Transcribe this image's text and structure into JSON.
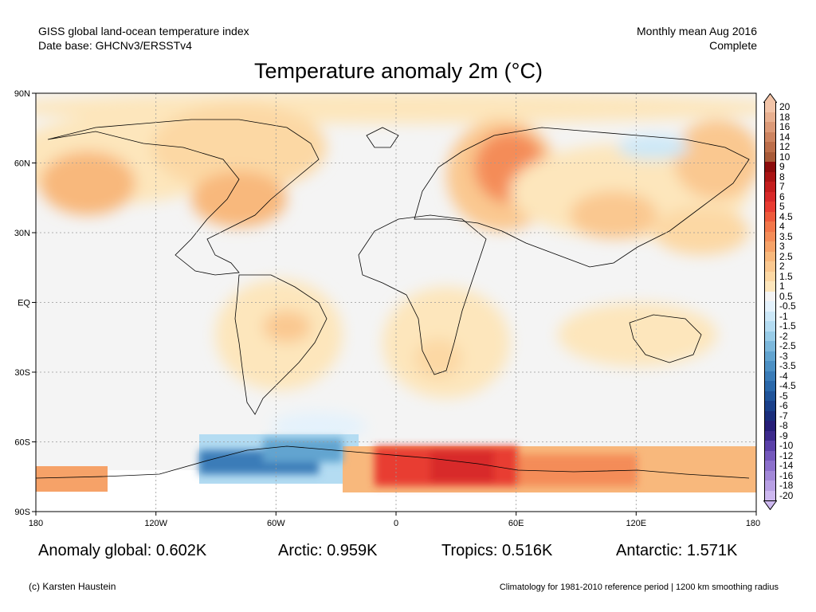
{
  "header": {
    "left_line1": "GISS global land-ocean temperature index",
    "left_line2": "Date base: GHCNv3/ERSSTv4",
    "right_line1": "Monthly mean Aug 2016",
    "right_line2": "Complete"
  },
  "title": "Temperature anomaly 2m (°C)",
  "axes": {
    "lat_labels": [
      "90N",
      "60N",
      "30N",
      "EQ",
      "30S",
      "60S",
      "90S"
    ],
    "lon_labels": [
      "180",
      "120W",
      "60W",
      "0",
      "60E",
      "120E",
      "180"
    ]
  },
  "stats": {
    "global": "Anomaly global: 0.602K",
    "arctic": "Arctic: 0.959K",
    "tropics": "Tropics: 0.516K",
    "antarctic": "Antarctic: 1.571K"
  },
  "footer": {
    "credit": "(c) Karsten Haustein",
    "note": "Climatology for 1981-2010 reference period | 1200 km smoothing radius"
  },
  "colorbar": {
    "top_arrow_color": "#f2c4a8",
    "bottom_arrow_color": "#cdb8f0",
    "levels": [
      {
        "label": "20",
        "color": "#f2c4a8"
      },
      {
        "label": "18",
        "color": "#e8b090"
      },
      {
        "label": "16",
        "color": "#dc9a78"
      },
      {
        "label": "14",
        "color": "#cd8460"
      },
      {
        "label": "12",
        "color": "#bc6e4a"
      },
      {
        "label": "10",
        "color": "#a85a38"
      },
      {
        "label": "9",
        "color": "#8c0c0c"
      },
      {
        "label": "8",
        "color": "#aa1414"
      },
      {
        "label": "7",
        "color": "#c41e1e"
      },
      {
        "label": "6",
        "color": "#d82a2a"
      },
      {
        "label": "5",
        "color": "#e83c32"
      },
      {
        "label": "4.5",
        "color": "#ee5a3c"
      },
      {
        "label": "4",
        "color": "#f2764a"
      },
      {
        "label": "3.5",
        "color": "#f48c58"
      },
      {
        "label": "3",
        "color": "#f6a268"
      },
      {
        "label": "2.5",
        "color": "#f8b87c"
      },
      {
        "label": "2",
        "color": "#fac890"
      },
      {
        "label": "1.5",
        "color": "#fcd8a4"
      },
      {
        "label": "1",
        "color": "#fde6bc"
      },
      {
        "label": "0.5",
        "color": "#f4f4f4"
      },
      {
        "label": "-0.5",
        "color": "#e4f2fc"
      },
      {
        "label": "-1",
        "color": "#cce8f8"
      },
      {
        "label": "-1.5",
        "color": "#b4dcf2"
      },
      {
        "label": "-2",
        "color": "#98cce8"
      },
      {
        "label": "-2.5",
        "color": "#7cb8dc"
      },
      {
        "label": "-3",
        "color": "#62a4d0"
      },
      {
        "label": "-3.5",
        "color": "#4c90c4"
      },
      {
        "label": "-4",
        "color": "#3a7cb8"
      },
      {
        "label": "-4.5",
        "color": "#2a68aa"
      },
      {
        "label": "-5",
        "color": "#20549a"
      },
      {
        "label": "-6",
        "color": "#1a408a"
      },
      {
        "label": "-7",
        "color": "#1a2e7c"
      },
      {
        "label": "-8",
        "color": "#261e78"
      },
      {
        "label": "-9",
        "color": "#3c2a8c"
      },
      {
        "label": "-10",
        "color": "#5a40a8"
      },
      {
        "label": "-12",
        "color": "#7458bc"
      },
      {
        "label": "-14",
        "color": "#8c70cc"
      },
      {
        "label": "-16",
        "color": "#a288d8"
      },
      {
        "label": "-18",
        "color": "#b8a0e4"
      },
      {
        "label": "-20",
        "color": "#cdb8f0"
      }
    ]
  }
}
